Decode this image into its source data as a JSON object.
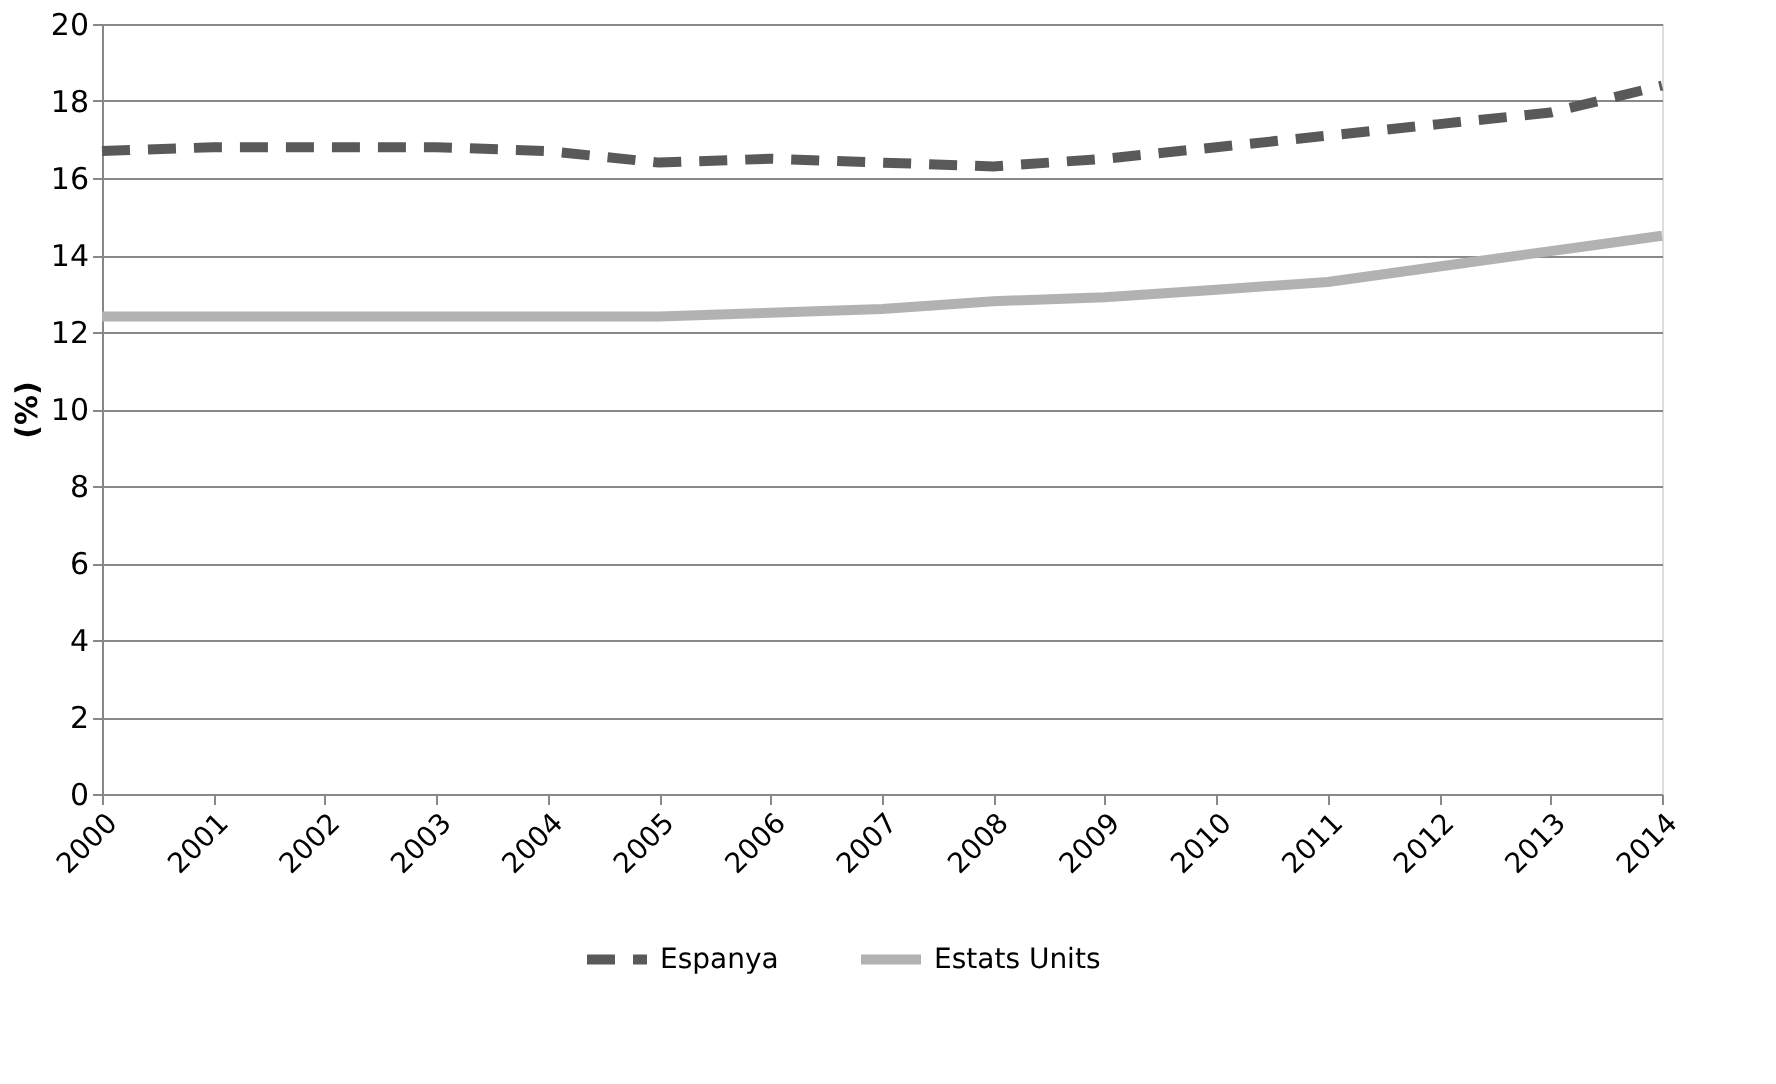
{
  "chart_data": {
    "type": "line",
    "ylabel": "(%)",
    "categories": [
      "2000",
      "2001",
      "2002",
      "2003",
      "2004",
      "2005",
      "2006",
      "2007",
      "2008",
      "2009",
      "2010",
      "2011",
      "2012",
      "2013",
      "2014"
    ],
    "series": [
      {
        "name": "Espanya",
        "color": "#595959",
        "line_style": "dashed",
        "values": [
          16.7,
          16.8,
          16.8,
          16.8,
          16.7,
          16.4,
          16.5,
          16.4,
          16.3,
          16.5,
          16.8,
          17.1,
          17.4,
          17.7,
          18.4
        ]
      },
      {
        "name": "Estats Units",
        "color": "#b2b2b2",
        "line_style": "solid",
        "values": [
          12.4,
          12.4,
          12.4,
          12.4,
          12.4,
          12.4,
          12.5,
          12.6,
          12.8,
          12.9,
          13.1,
          13.3,
          13.7,
          14.1,
          14.5
        ]
      }
    ],
    "ylim": [
      0,
      20
    ],
    "yticks": [
      0,
      2,
      4,
      6,
      8,
      10,
      12,
      14,
      16,
      18,
      20
    ],
    "grid": "y",
    "legend": "bottom",
    "marker": "none"
  }
}
